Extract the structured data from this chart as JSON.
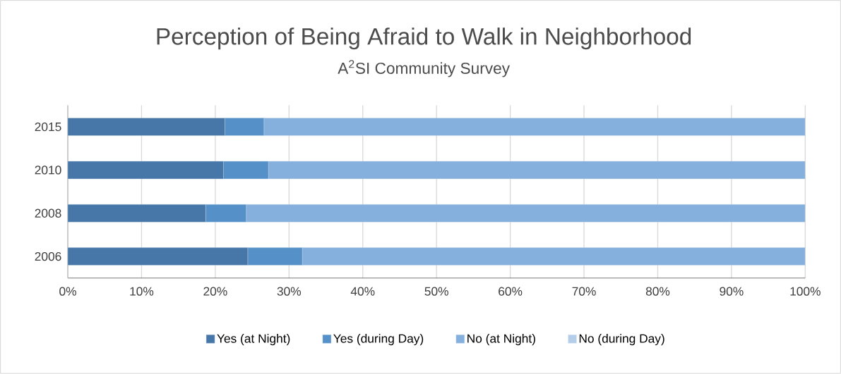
{
  "chart_data": {
    "type": "bar",
    "orientation": "horizontal",
    "stacked": true,
    "title": "Perception of Being Afraid to Walk in Neighborhood",
    "subtitle": "A$^{2}$SI Community Survey",
    "categories": [
      "2015",
      "2010",
      "2008",
      "2006"
    ],
    "series": [
      {
        "name": "Yes (at Night)",
        "color": "#4677a8",
        "values": [
          21.3,
          21.1,
          18.7,
          24.4
        ]
      },
      {
        "name": "Yes (during Day)",
        "color": "#5591c8",
        "values": [
          5.3,
          6.1,
          5.5,
          7.4
        ]
      },
      {
        "name": "No (at Night)",
        "color": "#85afdc",
        "values": [
          73.4,
          72.8,
          75.8,
          68.2
        ]
      },
      {
        "name": "No (during Day)",
        "color": "#b4cde9",
        "values": [
          0,
          0,
          0,
          0
        ]
      }
    ],
    "xlim": [
      0,
      100
    ],
    "xticks": [
      {
        "value": 0,
        "label": "0%"
      },
      {
        "value": 10,
        "label": "10%"
      },
      {
        "value": 20,
        "label": "20%"
      },
      {
        "value": 30,
        "label": "30%"
      },
      {
        "value": 40,
        "label": "40%"
      },
      {
        "value": 50,
        "label": "50%"
      },
      {
        "value": 60,
        "label": "60%"
      },
      {
        "value": 70,
        "label": "70%"
      },
      {
        "value": 80,
        "label": "80%"
      },
      {
        "value": 90,
        "label": "90%"
      },
      {
        "value": 100,
        "label": "100%"
      }
    ],
    "grid": "x",
    "legend": "bottom"
  }
}
